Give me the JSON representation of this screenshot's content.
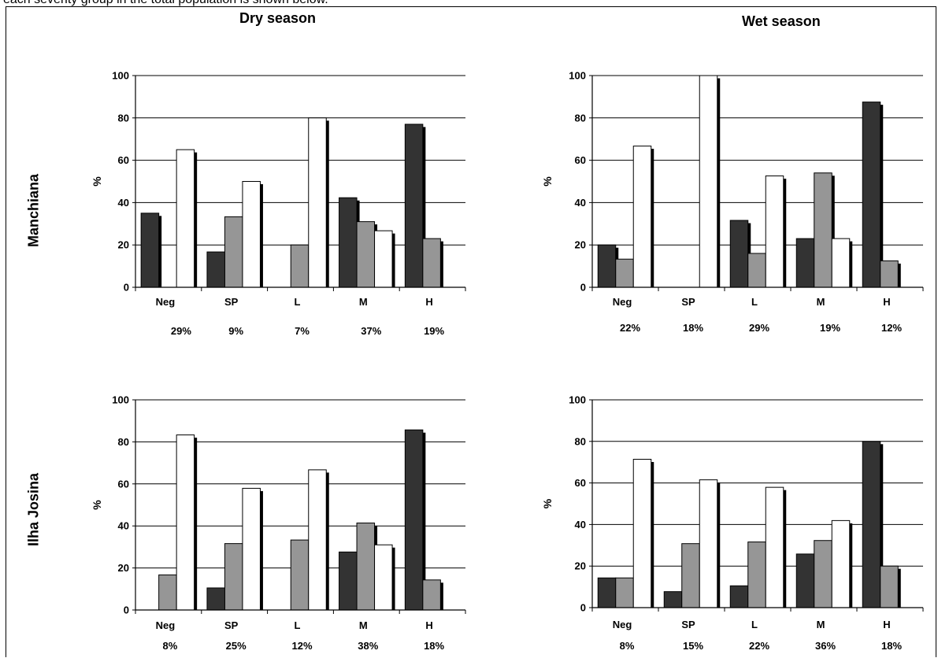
{
  "caption": "each severity group in the total population is shown below.",
  "titles": {
    "dry": "Dry season",
    "wet": "Wet season"
  },
  "row_labels": {
    "manchiana": "Manchiana",
    "ilha_josina": "Ilha Josina"
  },
  "colors": {
    "series_1": "#333333",
    "series_2": "#969696",
    "series_3": "#ffffff",
    "shadow": "#000000",
    "gridline": "#000000"
  },
  "chart_data": [
    {
      "type": "bar",
      "panel": "Manchiana - Dry season",
      "categories": [
        "Neg",
        "SP",
        "L",
        "M",
        "H"
      ],
      "category_percents": [
        "29%",
        "9%",
        "7%",
        "37%",
        "19%"
      ],
      "series": [
        {
          "values": [
            35,
            16.7,
            0,
            42.3,
            77
          ]
        },
        {
          "values": [
            0,
            33.3,
            20,
            31,
            23
          ]
        },
        {
          "values": [
            65,
            50,
            80,
            26.7,
            0
          ]
        }
      ],
      "ylabel": "%",
      "ylim": [
        0,
        100
      ],
      "yticks": [
        0,
        20,
        40,
        60,
        80,
        100
      ],
      "grid": true
    },
    {
      "type": "bar",
      "panel": "Manchiana - Wet season",
      "categories": [
        "Neg",
        "SP",
        "L",
        "M",
        "H"
      ],
      "category_percents": [
        "22%",
        "18%",
        "29%",
        "19%",
        "12%"
      ],
      "series": [
        {
          "values": [
            20,
            0,
            31.6,
            23,
            87.5
          ]
        },
        {
          "values": [
            13.3,
            0,
            16,
            54,
            12.5
          ]
        },
        {
          "values": [
            66.7,
            100,
            52.6,
            23,
            0
          ]
        }
      ],
      "ylabel": "%",
      "ylim": [
        0,
        100
      ],
      "yticks": [
        0,
        20,
        40,
        60,
        80,
        100
      ],
      "grid": true
    },
    {
      "type": "bar",
      "panel": "Ilha Josina - Dry season",
      "categories": [
        "Neg",
        "SP",
        "L",
        "M",
        "H"
      ],
      "category_percents": [
        "8%",
        "25%",
        "12%",
        "38%",
        "18%"
      ],
      "series": [
        {
          "values": [
            0,
            10.5,
            0,
            27.6,
            85.7
          ]
        },
        {
          "values": [
            16.7,
            31.6,
            33.3,
            41.4,
            14.3
          ]
        },
        {
          "values": [
            83.3,
            57.9,
            66.7,
            31,
            0
          ]
        }
      ],
      "ylabel": "%",
      "ylim": [
        0,
        100
      ],
      "yticks": [
        0,
        20,
        40,
        60,
        80,
        100
      ],
      "grid": true
    },
    {
      "type": "bar",
      "panel": "Ilha Josina - Wet season",
      "categories": [
        "Neg",
        "SP",
        "L",
        "M",
        "H"
      ],
      "category_percents": [
        "8%",
        "15%",
        "22%",
        "36%",
        "18%"
      ],
      "series": [
        {
          "values": [
            14.3,
            7.7,
            10.5,
            25.8,
            80
          ]
        },
        {
          "values": [
            14.3,
            30.8,
            31.6,
            32.3,
            20
          ]
        },
        {
          "values": [
            71.4,
            61.5,
            57.9,
            41.9,
            0
          ]
        }
      ],
      "ylabel": "%",
      "ylim": [
        0,
        100
      ],
      "yticks": [
        0,
        20,
        40,
        60,
        80,
        100
      ],
      "grid": true
    }
  ]
}
